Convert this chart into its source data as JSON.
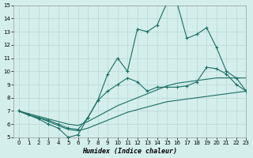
{
  "xlabel": "Humidex (Indice chaleur)",
  "background_color": "#d4eeec",
  "grid_color": "#b8d8d4",
  "line_color": "#1a6e64",
  "xlim": [
    -0.5,
    23
  ],
  "ylim": [
    5,
    15
  ],
  "xticks": [
    0,
    1,
    2,
    3,
    4,
    5,
    6,
    7,
    8,
    9,
    10,
    11,
    12,
    13,
    14,
    15,
    16,
    17,
    18,
    19,
    20,
    21,
    22,
    23
  ],
  "yticks": [
    5,
    6,
    7,
    8,
    9,
    10,
    11,
    12,
    13,
    14,
    15
  ],
  "line1_x": [
    0,
    1,
    2,
    3,
    4,
    5,
    6,
    7,
    8,
    9,
    10,
    11,
    12,
    13,
    14,
    15,
    16,
    17,
    18,
    19,
    20,
    21,
    22,
    23
  ],
  "line1_y": [
    7.0,
    6.7,
    6.5,
    6.2,
    5.9,
    5.6,
    5.5,
    5.7,
    6.0,
    6.3,
    6.6,
    6.9,
    7.1,
    7.3,
    7.5,
    7.7,
    7.8,
    7.9,
    8.0,
    8.1,
    8.2,
    8.3,
    8.4,
    8.5
  ],
  "line2_x": [
    0,
    1,
    2,
    3,
    4,
    5,
    6,
    7,
    8,
    9,
    10,
    11,
    12,
    13,
    14,
    15,
    16,
    17,
    18,
    19,
    20,
    21,
    22,
    23
  ],
  "line2_y": [
    7.0,
    6.8,
    6.6,
    6.4,
    6.2,
    6.0,
    5.9,
    6.2,
    6.6,
    7.0,
    7.4,
    7.7,
    8.0,
    8.3,
    8.6,
    8.9,
    9.1,
    9.2,
    9.3,
    9.4,
    9.5,
    9.5,
    9.5,
    9.5
  ],
  "line3_x": [
    0,
    1,
    2,
    3,
    4,
    5,
    6,
    7,
    8,
    9,
    10,
    11,
    12,
    13,
    14,
    15,
    16,
    17,
    18,
    19,
    20,
    21,
    22,
    23
  ],
  "line3_y": [
    7.0,
    6.7,
    6.5,
    6.3,
    6.0,
    5.7,
    5.6,
    6.5,
    7.8,
    8.5,
    9.0,
    9.5,
    9.2,
    8.5,
    8.8,
    8.8,
    8.8,
    8.9,
    9.2,
    10.3,
    10.2,
    9.8,
    9.0,
    8.5
  ],
  "line4_x": [
    0,
    1,
    2,
    3,
    4,
    5,
    6,
    7,
    8,
    9,
    10,
    11,
    12,
    13,
    14,
    15,
    16,
    17,
    18,
    19,
    20,
    21,
    22,
    23
  ],
  "line4_y": [
    7.0,
    6.7,
    6.4,
    6.0,
    5.7,
    5.0,
    5.2,
    6.5,
    7.8,
    9.8,
    11.0,
    10.0,
    13.2,
    13.0,
    13.5,
    15.2,
    15.2,
    12.5,
    12.8,
    13.3,
    11.8,
    10.0,
    9.5,
    8.5
  ]
}
